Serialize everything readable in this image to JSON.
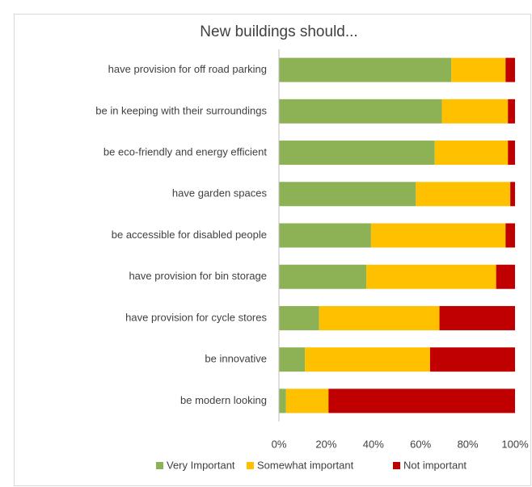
{
  "chart_data": {
    "type": "stacked-bar-horizontal",
    "title": "New buildings should...",
    "categories": [
      "have provision for off road parking",
      "be in keeping with their surroundings",
      "be eco-friendly and energy efficient",
      "have garden spaces",
      "be accessible for disabled people",
      "have provision for bin storage",
      "have provision for cycle stores",
      "be innovative",
      "be modern looking"
    ],
    "series": [
      {
        "name": "Very Important",
        "color": "#8db255",
        "values": [
          73,
          69,
          66,
          58,
          39,
          37,
          17,
          11,
          3
        ]
      },
      {
        "name": "Somewhat important",
        "color": "#ffc000",
        "values": [
          23,
          28,
          31,
          40,
          57,
          55,
          51,
          53,
          18
        ]
      },
      {
        "name": "Not important",
        "color": "#c00000",
        "values": [
          4,
          3,
          3,
          2,
          4,
          8,
          32,
          36,
          79
        ]
      }
    ],
    "xlim": [
      0,
      100
    ],
    "xticks": [
      {
        "value": 0,
        "label": "0%"
      },
      {
        "value": 20,
        "label": "20%"
      },
      {
        "value": 40,
        "label": "40%"
      },
      {
        "value": 60,
        "label": "60%"
      },
      {
        "value": 80,
        "label": "80%"
      },
      {
        "value": 100,
        "label": "100%"
      }
    ],
    "legend": "bottom",
    "grid": false
  }
}
